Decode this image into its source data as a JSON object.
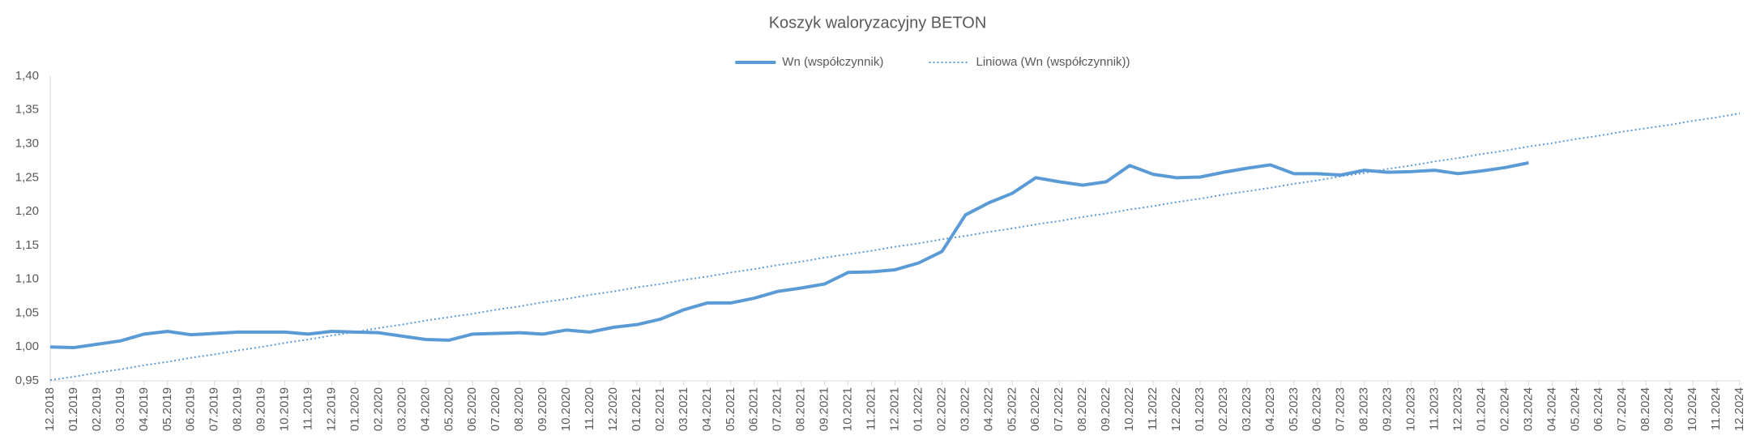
{
  "chart_data": {
    "type": "line",
    "title": "Koszyk waloryzacyjny BETON",
    "categories": [
      "12.2018",
      "01.2019",
      "02.2019",
      "03.2019",
      "04.2019",
      "05.2019",
      "06.2019",
      "07.2019",
      "08.2019",
      "09.2019",
      "10.2019",
      "11.2019",
      "12.2019",
      "01.2020",
      "02.2020",
      "03.2020",
      "04.2020",
      "05.2020",
      "06.2020",
      "07.2020",
      "08.2020",
      "09.2020",
      "10.2020",
      "11.2020",
      "12.2020",
      "01.2021",
      "02.2021",
      "03.2021",
      "04.2021",
      "05.2021",
      "06.2021",
      "07.2021",
      "08.2021",
      "09.2021",
      "10.2021",
      "11.2021",
      "12.2021",
      "01.2022",
      "02.2022",
      "03.2022",
      "04.2022",
      "05.2022",
      "06.2022",
      "07.2022",
      "08.2022",
      "09.2022",
      "10.2022",
      "11.2022",
      "12.2022",
      "01.2023",
      "02.2023",
      "03.2023",
      "04.2023",
      "05.2023",
      "06.2023",
      "07.2023",
      "08.2023",
      "09.2023",
      "10.2023",
      "11.2023",
      "12.2023",
      "01.2024",
      "02.2024",
      "03.2024",
      "04.2024",
      "05.2024",
      "06.2024",
      "07.2024",
      "08.2024",
      "09.2024",
      "10.2024",
      "11.2024",
      "12.2024"
    ],
    "series": [
      {
        "name": "Wn (współczynnik)",
        "color": "#5b9bd5",
        "dash": "solid",
        "values": [
          1.0,
          0.999,
          1.004,
          1.009,
          1.019,
          1.023,
          1.018,
          1.02,
          1.022,
          1.022,
          1.022,
          1.019,
          1.023,
          1.022,
          1.021,
          1.016,
          1.011,
          1.01,
          1.019,
          1.02,
          1.021,
          1.019,
          1.025,
          1.022,
          1.029,
          1.033,
          1.041,
          1.055,
          1.065,
          1.065,
          1.072,
          1.082,
          1.087,
          1.093,
          1.11,
          1.111,
          1.114,
          1.124,
          1.141,
          1.195,
          1.213,
          1.227,
          1.25,
          1.244,
          1.239,
          1.244,
          1.268,
          1.255,
          1.25,
          1.251,
          1.258,
          1.264,
          1.269,
          1.256,
          1.256,
          1.254,
          1.261,
          1.258,
          1.259,
          1.261,
          1.256,
          1.26,
          1.265,
          1.272,
          null,
          null,
          null,
          null,
          null,
          null,
          null,
          null,
          null
        ]
      },
      {
        "name": "Liniowa (Wn (współczynnik))",
        "color": "#5b9bd5",
        "dash": "dotted",
        "values": [
          0.951,
          0.956,
          0.962,
          0.967,
          0.973,
          0.978,
          0.984,
          0.989,
          0.995,
          1.0,
          1.006,
          1.011,
          1.017,
          1.022,
          1.028,
          1.033,
          1.039,
          1.044,
          1.049,
          1.055,
          1.06,
          1.066,
          1.071,
          1.077,
          1.082,
          1.088,
          1.093,
          1.099,
          1.104,
          1.11,
          1.115,
          1.121,
          1.126,
          1.132,
          1.137,
          1.142,
          1.148,
          1.153,
          1.159,
          1.164,
          1.17,
          1.175,
          1.181,
          1.186,
          1.192,
          1.197,
          1.203,
          1.208,
          1.214,
          1.219,
          1.225,
          1.23,
          1.235,
          1.241,
          1.246,
          1.252,
          1.257,
          1.263,
          1.268,
          1.274,
          1.279,
          1.285,
          1.29,
          1.296,
          1.301,
          1.307,
          1.312,
          1.318,
          1.323,
          1.328,
          1.334,
          1.339,
          1.345
        ]
      }
    ],
    "ylim": [
      0.95,
      1.4
    ],
    "yticks": [
      {
        "value": 0.95,
        "label": "0,95"
      },
      {
        "value": 1.0,
        "label": "1,00"
      },
      {
        "value": 1.05,
        "label": "1,05"
      },
      {
        "value": 1.1,
        "label": "1,10"
      },
      {
        "value": 1.15,
        "label": "1,15"
      },
      {
        "value": 1.2,
        "label": "1,20"
      },
      {
        "value": 1.25,
        "label": "1,25"
      },
      {
        "value": 1.3,
        "label": "1,30"
      },
      {
        "value": 1.35,
        "label": "1,35"
      },
      {
        "value": 1.4,
        "label": "1,40"
      }
    ],
    "grid": false,
    "legend": "top"
  }
}
